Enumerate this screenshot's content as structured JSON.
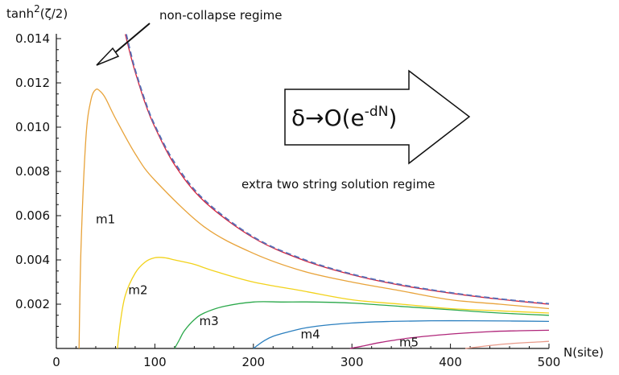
{
  "chart_data": {
    "type": "line",
    "x": [
      0,
      100,
      200,
      300,
      400,
      500
    ],
    "xlabel": "N(site)",
    "ylabel_base": "tanh",
    "ylabel_sup": "2",
    "ylabel_rest": "(ζ/2)",
    "xlim": [
      0,
      500
    ],
    "ylim": [
      0,
      0.014
    ],
    "xticks": [
      "0",
      "100",
      "200",
      "300",
      "400",
      "500"
    ],
    "yticks": [
      "0.002",
      "0.004",
      "0.006",
      "0.008",
      "0.010",
      "0.012",
      "0.014"
    ],
    "yticks_values": [
      0.002,
      0.004,
      0.006,
      0.008,
      0.01,
      0.012,
      0.014
    ],
    "colors": {
      "m1": "#e8a33a",
      "m2": "#f2d21a",
      "m3": "#2aa84a",
      "m4": "#2b7fbf",
      "m5": "#b0267a",
      "tail": "#e89a8a",
      "boundary": "#d8203a",
      "asymptote": "#5470b8"
    },
    "series": [
      {
        "name": "m1",
        "x": [
          23,
          25,
          30,
          35,
          40,
          45,
          50,
          60,
          80,
          100,
          150,
          200,
          250,
          300,
          350,
          400,
          450,
          500
        ],
        "values": [
          0.0,
          0.0045,
          0.0095,
          0.0112,
          0.0117,
          0.0116,
          0.0113,
          0.0104,
          0.0088,
          0.0076,
          0.0055,
          0.0043,
          0.0035,
          0.003,
          0.0026,
          0.0022,
          0.002,
          0.0018
        ]
      },
      {
        "name": "m2",
        "x": [
          62,
          65,
          70,
          80,
          90,
          100,
          110,
          120,
          140,
          160,
          200,
          250,
          300,
          350,
          400,
          450,
          500
        ],
        "values": [
          0.0,
          0.0012,
          0.0024,
          0.0034,
          0.0039,
          0.0041,
          0.0041,
          0.004,
          0.0038,
          0.0035,
          0.003,
          0.0026,
          0.0022,
          0.002,
          0.0018,
          0.0017,
          0.0016
        ]
      },
      {
        "name": "m3",
        "x": [
          120,
          125,
          130,
          140,
          150,
          170,
          200,
          230,
          260,
          300,
          350,
          400,
          450,
          500
        ],
        "values": [
          0.0,
          0.0004,
          0.0008,
          0.0013,
          0.0016,
          0.0019,
          0.0021,
          0.0021,
          0.0021,
          0.00205,
          0.0019,
          0.00175,
          0.0016,
          0.0015
        ]
      },
      {
        "name": "m4",
        "x": [
          200,
          210,
          220,
          240,
          260,
          300,
          340,
          380,
          420,
          460,
          500
        ],
        "values": [
          0.0,
          0.00032,
          0.00055,
          0.0008,
          0.00098,
          0.00115,
          0.00122,
          0.00125,
          0.00125,
          0.00124,
          0.00122
        ]
      },
      {
        "name": "m5",
        "x": [
          298,
          310,
          330,
          360,
          400,
          440,
          470,
          500
        ],
        "values": [
          0.0,
          0.0001,
          0.00028,
          0.00048,
          0.00065,
          0.00076,
          0.0008,
          0.00082
        ]
      },
      {
        "name": "",
        "key": "tail",
        "x": [
          415,
          430,
          450,
          475,
          500
        ],
        "values": [
          0.0,
          8e-05,
          0.00018,
          0.00026,
          0.00032
        ]
      },
      {
        "name": "",
        "key": "boundary",
        "x": [
          70,
          75,
          80,
          90,
          100,
          120,
          150,
          200,
          250,
          300,
          350,
          400,
          450,
          500
        ],
        "values": [
          0.0142,
          0.0133,
          0.0125,
          0.0111,
          0.01,
          0.0083,
          0.00665,
          0.005,
          0.004,
          0.00333,
          0.00285,
          0.0025,
          0.00222,
          0.002
        ]
      },
      {
        "name": "",
        "key": "asymptote",
        "dashed": true,
        "x": [
          71,
          75,
          80,
          90,
          100,
          120,
          150,
          200,
          250,
          300,
          350,
          400,
          450,
          500
        ],
        "values": [
          0.0142,
          0.01345,
          0.0126,
          0.0112,
          0.01008,
          0.0084,
          0.00672,
          0.00504,
          0.00404,
          0.00336,
          0.00288,
          0.00252,
          0.00224,
          0.00202
        ]
      }
    ],
    "curve_labels": [
      {
        "text": "m1",
        "x": 40,
        "y": 0.00565
      },
      {
        "text": "m2",
        "x": 73,
        "y": 0.00245
      },
      {
        "text": "m3",
        "x": 145,
        "y": 0.00105
      },
      {
        "text": "m4",
        "x": 248,
        "y": 0.00045
      },
      {
        "text": "m5",
        "x": 348,
        "y": 0.0001
      }
    ],
    "annotations": {
      "non_collapse": "non-collapse regime",
      "extra_two_string": "extra two string solution regime",
      "arrow_formula_base": "δ→O(e",
      "arrow_formula_sup": "-dN",
      "arrow_formula_end": ")"
    }
  }
}
